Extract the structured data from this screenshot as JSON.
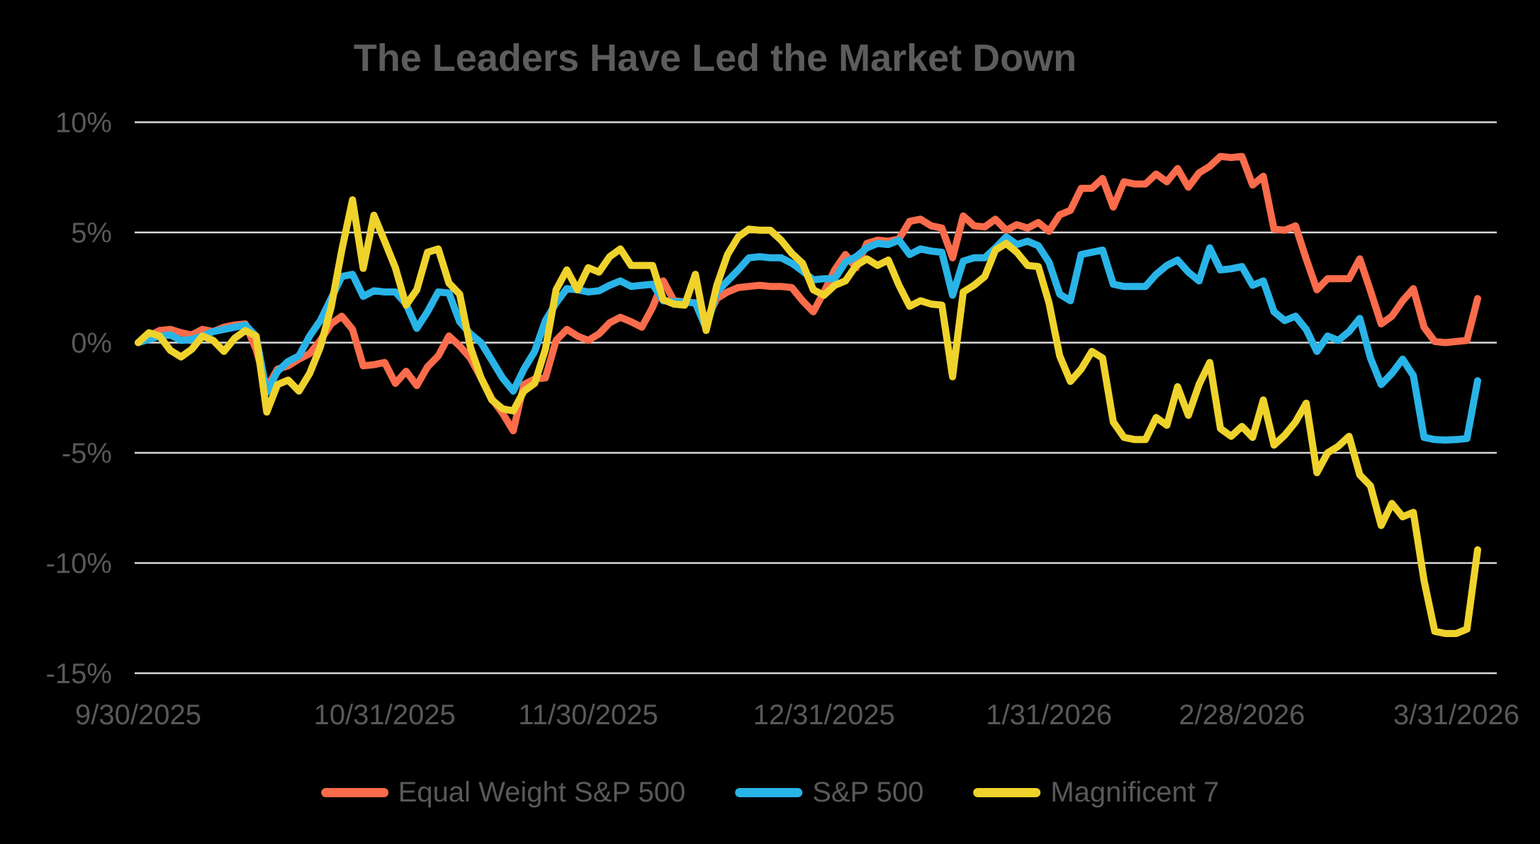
{
  "chart_data": {
    "type": "line",
    "title": "The Leaders Have Led the Market Down",
    "x_description": "Daily observations from 9/30/2025 through 3/31/2026, evenly spaced trading days",
    "x_tick_labels": [
      "9/30/2025",
      "10/31/2025",
      "11/30/2025",
      "12/31/2025",
      "1/31/2026",
      "2/28/2026",
      "3/31/2026"
    ],
    "x_tick_days": [
      0,
      23,
      42,
      64,
      85,
      103,
      125
    ],
    "y_ticks": [
      10,
      5,
      0,
      -5,
      -10,
      -15
    ],
    "y_tick_suffix": "%",
    "ylabel": "",
    "xlabel": "",
    "ylim": [
      -15,
      10
    ],
    "grid": "horizontal",
    "legend_position": "bottom",
    "colors": {
      "background": "#000000",
      "gridline": "#d9d9d9",
      "axis_text": "#595959",
      "title_text": "#5c5c5c"
    },
    "series": [
      {
        "name": "Equal Weight S&P 500",
        "color": "#fa6c4b",
        "values": [
          0.0,
          0.3,
          0.55,
          0.6,
          0.45,
          0.35,
          0.6,
          0.5,
          0.7,
          0.8,
          0.85,
          -0.3,
          -2.05,
          -1.2,
          -1.05,
          -0.75,
          -0.5,
          0.1,
          0.85,
          1.2,
          0.6,
          -1.05,
          -1.0,
          -0.9,
          -1.85,
          -1.3,
          -1.95,
          -1.1,
          -0.6,
          0.3,
          -0.15,
          -0.7,
          -1.6,
          -2.55,
          -3.2,
          -4.0,
          -1.9,
          -1.65,
          -1.6,
          0.1,
          0.6,
          0.3,
          0.1,
          0.4,
          0.9,
          1.15,
          0.95,
          0.7,
          1.6,
          2.8,
          1.9,
          1.85,
          1.8,
          1.0,
          2.0,
          2.3,
          2.5,
          2.55,
          2.6,
          2.55,
          2.55,
          2.5,
          1.9,
          1.4,
          2.3,
          3.3,
          4.0,
          3.4,
          4.5,
          4.65,
          4.6,
          4.7,
          5.5,
          5.6,
          5.3,
          5.2,
          3.85,
          5.75,
          5.3,
          5.25,
          5.6,
          5.1,
          5.35,
          5.2,
          5.45,
          5.05,
          5.8,
          6.0,
          7.0,
          7.0,
          7.45,
          6.15,
          7.3,
          7.2,
          7.2,
          7.65,
          7.3,
          7.9,
          7.05,
          7.7,
          8.0,
          8.45,
          8.4,
          8.45,
          7.15,
          7.55,
          5.15,
          5.1,
          5.3,
          3.8,
          2.4,
          2.9,
          2.9,
          2.9,
          3.8,
          2.35,
          0.85,
          1.2,
          1.9,
          2.45,
          0.7,
          0.05,
          0.0,
          0.05,
          0.1,
          2.0
        ]
      },
      {
        "name": "S&P 500",
        "color": "#29b4e8",
        "values": [
          0.0,
          0.15,
          0.3,
          0.35,
          0.1,
          0.15,
          0.3,
          0.5,
          0.6,
          0.7,
          0.8,
          0.3,
          -2.25,
          -1.3,
          -0.85,
          -0.6,
          0.3,
          1.0,
          2.0,
          3.0,
          3.1,
          2.1,
          2.35,
          2.3,
          2.3,
          1.75,
          0.65,
          1.4,
          2.3,
          2.25,
          0.95,
          0.4,
          0.0,
          -0.8,
          -1.6,
          -2.2,
          -1.2,
          -0.4,
          1.0,
          1.8,
          2.45,
          2.4,
          2.3,
          2.35,
          2.6,
          2.8,
          2.55,
          2.6,
          2.65,
          1.9,
          1.86,
          1.85,
          1.8,
          0.65,
          2.3,
          2.8,
          3.3,
          3.85,
          3.9,
          3.85,
          3.85,
          3.6,
          3.25,
          2.85,
          2.9,
          2.9,
          3.65,
          3.9,
          4.3,
          4.5,
          4.45,
          4.65,
          4.0,
          4.25,
          4.15,
          4.1,
          2.15,
          3.7,
          3.85,
          3.85,
          4.3,
          4.8,
          4.45,
          4.6,
          4.4,
          3.65,
          2.2,
          1.9,
          4.0,
          4.1,
          4.2,
          2.65,
          2.55,
          2.55,
          2.55,
          3.1,
          3.5,
          3.75,
          3.2,
          2.8,
          4.3,
          3.3,
          3.35,
          3.45,
          2.6,
          2.8,
          1.4,
          1.0,
          1.2,
          0.6,
          -0.4,
          0.3,
          0.1,
          0.5,
          1.1,
          -0.7,
          -1.9,
          -1.4,
          -0.75,
          -1.5,
          -4.3,
          -4.4,
          -4.42,
          -4.4,
          -4.35,
          -1.73
        ]
      },
      {
        "name": "Magnificent 7",
        "color": "#efd32c",
        "values": [
          0.0,
          0.45,
          0.3,
          -0.35,
          -0.65,
          -0.3,
          0.3,
          0.1,
          -0.4,
          0.2,
          0.55,
          0.3,
          -3.15,
          -1.9,
          -1.7,
          -2.2,
          -1.4,
          -0.2,
          1.6,
          4.2,
          6.48,
          3.37,
          5.78,
          4.6,
          3.4,
          1.7,
          2.4,
          4.1,
          4.25,
          2.7,
          2.2,
          -0.2,
          -1.6,
          -2.6,
          -3.0,
          -3.1,
          -2.2,
          -1.85,
          -0.3,
          2.4,
          3.3,
          2.4,
          3.4,
          3.2,
          3.9,
          4.25,
          3.5,
          3.5,
          3.5,
          1.95,
          1.75,
          1.7,
          3.1,
          0.55,
          2.6,
          4.0,
          4.8,
          5.15,
          5.1,
          5.1,
          4.65,
          4.05,
          3.6,
          2.4,
          2.15,
          2.6,
          2.8,
          3.5,
          3.8,
          3.5,
          3.75,
          2.6,
          1.65,
          1.9,
          1.75,
          1.7,
          -1.55,
          2.3,
          2.6,
          3.0,
          4.2,
          4.5,
          4.1,
          3.5,
          3.45,
          1.8,
          -0.6,
          -1.76,
          -1.2,
          -0.4,
          -0.7,
          -3.6,
          -4.3,
          -4.4,
          -4.4,
          -3.4,
          -3.75,
          -2.0,
          -3.3,
          -1.9,
          -0.9,
          -3.9,
          -4.25,
          -3.8,
          -4.3,
          -2.6,
          -4.65,
          -4.2,
          -3.6,
          -2.75,
          -5.9,
          -5.0,
          -4.7,
          -4.25,
          -6.0,
          -6.5,
          -8.3,
          -7.3,
          -7.9,
          -7.7,
          -10.8,
          -13.1,
          -13.2,
          -13.2,
          -13.0,
          -9.4
        ]
      }
    ]
  }
}
